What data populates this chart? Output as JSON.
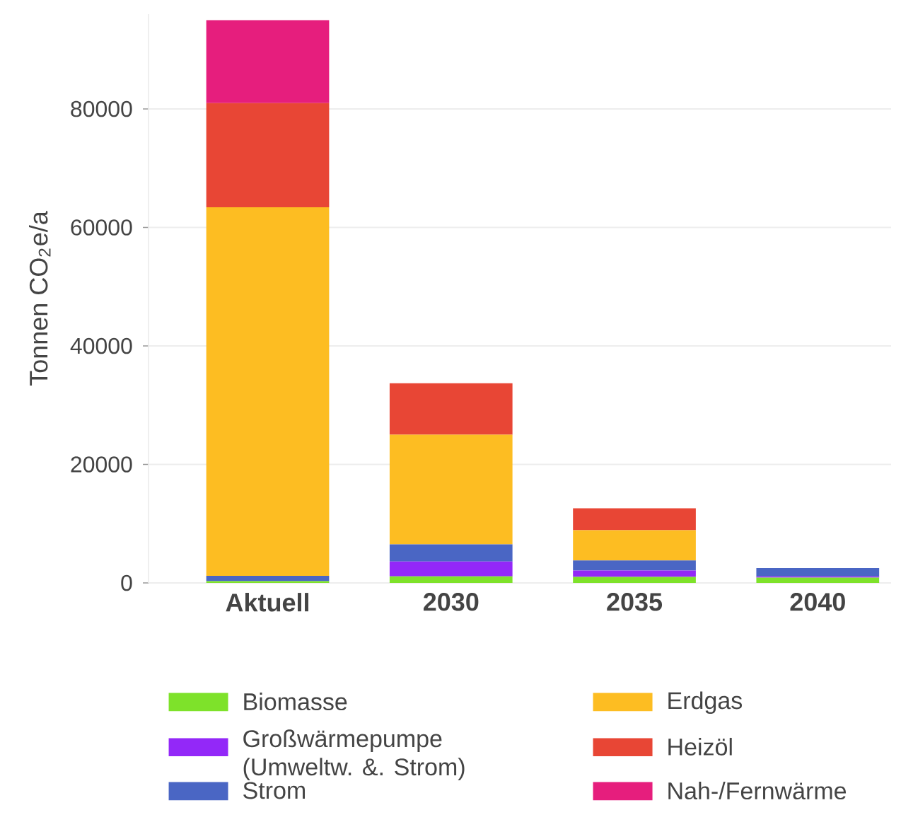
{
  "chart_data": {
    "type": "bar",
    "stacked": true,
    "ylabel": "Tonnen CO$_{2}$e/a",
    "categories": [
      "Aktuell",
      "2030",
      "2035",
      "2040"
    ],
    "series": [
      {
        "name": "Biomasse",
        "color": "#7ee22a",
        "values": [
          300,
          1100,
          1000,
          900
        ]
      },
      {
        "name": "Großwärmepumpe (Umweltw. &. Strom)",
        "color": "#9328f8",
        "values": [
          0,
          2500,
          1100,
          200
        ]
      },
      {
        "name": "Strom",
        "color": "#4a66c4",
        "values": [
          900,
          2900,
          1700,
          1400
        ]
      },
      {
        "name": "Erdgas",
        "color": "#fdbd22",
        "values": [
          62200,
          18500,
          5100,
          0
        ]
      },
      {
        "name": "Heizöl",
        "color": "#e84635",
        "values": [
          17600,
          8700,
          3700,
          0
        ]
      },
      {
        "name": "Nah-/Fernwärme",
        "color": "#e61e7d",
        "values": [
          14000,
          0,
          0,
          0
        ]
      }
    ],
    "ylim": [
      0,
      96000
    ],
    "yticks": [
      0,
      20000,
      40000,
      60000,
      80000
    ],
    "grid": "y",
    "legend": "bottom"
  }
}
